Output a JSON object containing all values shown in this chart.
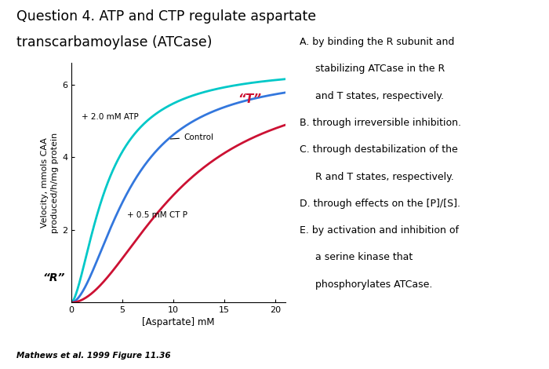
{
  "title_line1": "Question 4. ATP and CTP regulate aspartate",
  "title_line2": "transcarbamoylase (ATCase)",
  "xlabel": "[Aspartate] mM",
  "ylabel": "Velocity, mmols CAA\nproduced/h/mg protein",
  "xlim": [
    0,
    21
  ],
  "ylim": [
    0,
    6.6
  ],
  "xticks": [
    0,
    5,
    10,
    15,
    20
  ],
  "yticks": [
    2,
    4,
    6
  ],
  "atp_color": "#00C8C8",
  "ctrl_color": "#3377DD",
  "ctp_color": "#CC1133",
  "atp_label": "+ 2.0 mM ATP",
  "ctrl_label": "Control",
  "ctp_label": "+ 0.5 mM CT P",
  "annotation_T": "“T”",
  "annotation_R": "“R”",
  "caption": "Mathews et al. 1999 Figure 11.36",
  "answer_A1": "A. by binding the R subunit and",
  "answer_A2": "     stabilizing ATCase in the R",
  "answer_A3": "     and T states, respectively.",
  "answer_B": "B. through irreversible inhibition.",
  "answer_C1": "C. through destabilization of the",
  "answer_C2": "     R and T states, respectively.",
  "answer_D": "D. through effects on the [P]/[S].",
  "answer_E1": "E. by activation and inhibition of",
  "answer_E2": "     a serine kinase that",
  "answer_E3": "     phosphorylates ATCase.",
  "bg_color": "#FFFFFF"
}
